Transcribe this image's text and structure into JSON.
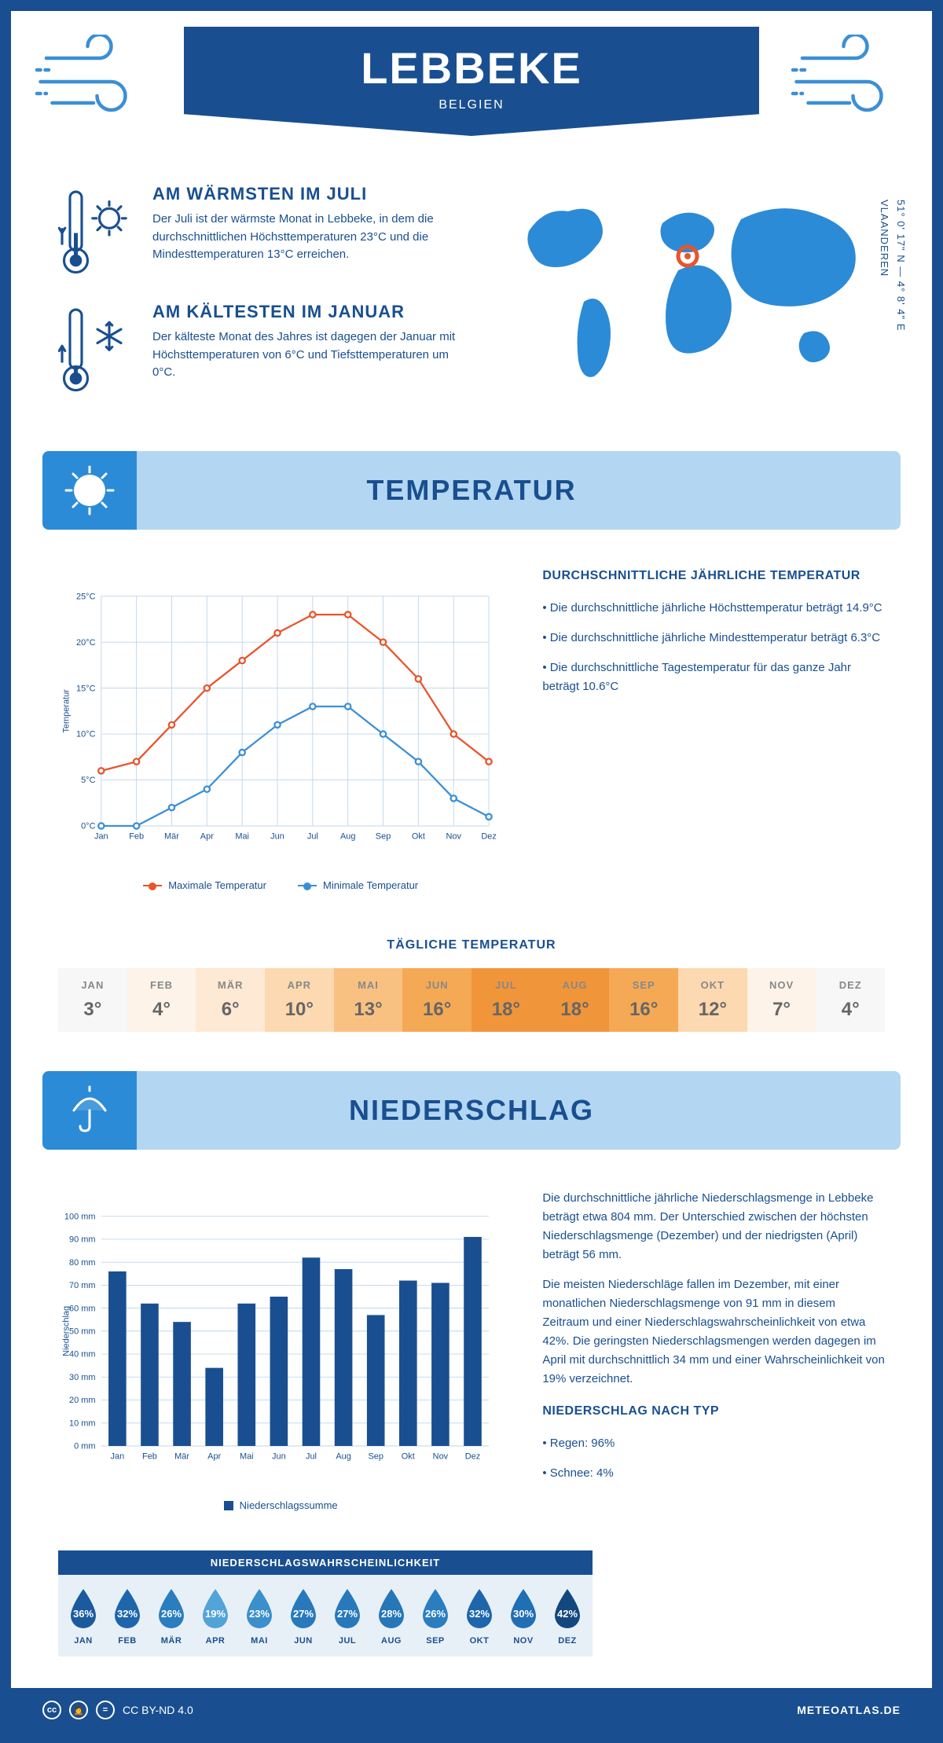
{
  "header": {
    "title": "LEBBEKE",
    "subtitle": "BELGIEN"
  },
  "coords": {
    "lat": "51° 0' 17\" N — 4° 8' 4\" E",
    "region": "VLAANDEREN"
  },
  "facts": {
    "warm": {
      "title": "AM WÄRMSTEN IM JULI",
      "text": "Der Juli ist der wärmste Monat in Lebbeke, in dem die durchschnittlichen Höchsttemperaturen 23°C und die Mindesttemperaturen 13°C erreichen."
    },
    "cold": {
      "title": "AM KÄLTESTEN IM JANUAR",
      "text": "Der kälteste Monat des Jahres ist dagegen der Januar mit Höchsttemperaturen von 6°C und Tiefsttemperaturen um 0°C."
    }
  },
  "sections": {
    "temperature": "TEMPERATUR",
    "precipitation": "NIEDERSCHLAG"
  },
  "temp_chart": {
    "type": "line",
    "months": [
      "Jan",
      "Feb",
      "Mär",
      "Apr",
      "Mai",
      "Jun",
      "Jul",
      "Aug",
      "Sep",
      "Okt",
      "Nov",
      "Dez"
    ],
    "max": [
      6,
      7,
      11,
      15,
      18,
      21,
      23,
      23,
      20,
      16,
      10,
      7
    ],
    "min": [
      0,
      0,
      2,
      4,
      8,
      11,
      13,
      13,
      10,
      7,
      3,
      1
    ],
    "ylim": [
      0,
      25
    ],
    "ytick_step": 5,
    "ylabel": "Temperatur",
    "max_color": "#e8552b",
    "min_color": "#3b8fd6",
    "grid_color": "#c0d5ea",
    "legend_max": "Maximale Temperatur",
    "legend_min": "Minimale Temperatur"
  },
  "temp_text": {
    "heading": "DURCHSCHNITTLICHE JÄHRLICHE TEMPERATUR",
    "p1": "• Die durchschnittliche jährliche Höchsttemperatur beträgt 14.9°C",
    "p2": "• Die durchschnittliche jährliche Mindesttemperatur beträgt 6.3°C",
    "p3": "• Die durchschnittliche Tagestemperatur für das ganze Jahr beträgt 10.6°C"
  },
  "daily": {
    "title": "TÄGLICHE TEMPERATUR",
    "months": [
      "JAN",
      "FEB",
      "MÄR",
      "APR",
      "MAI",
      "JUN",
      "JUL",
      "AUG",
      "SEP",
      "OKT",
      "NOV",
      "DEZ"
    ],
    "values": [
      "3°",
      "4°",
      "6°",
      "10°",
      "13°",
      "16°",
      "18°",
      "18°",
      "16°",
      "12°",
      "7°",
      "4°"
    ],
    "colors": [
      "#f7f7f7",
      "#fdf3e8",
      "#fde9d4",
      "#fcd9b0",
      "#f9c181",
      "#f5a955",
      "#f1953a",
      "#f1953a",
      "#f5a955",
      "#fcd9b0",
      "#fdf3e8",
      "#f7f7f7"
    ]
  },
  "precip_chart": {
    "type": "bar",
    "months": [
      "Jan",
      "Feb",
      "Mär",
      "Apr",
      "Mai",
      "Jun",
      "Jul",
      "Aug",
      "Sep",
      "Okt",
      "Nov",
      "Dez"
    ],
    "values": [
      76,
      62,
      54,
      34,
      62,
      65,
      82,
      77,
      57,
      72,
      71,
      91
    ],
    "ylim": [
      0,
      100
    ],
    "ytick_step": 10,
    "ylabel": "Niederschlag",
    "bar_color": "#194f90",
    "grid_color": "#c0d5ea",
    "legend": "Niederschlagssumme"
  },
  "precip_text": {
    "p1": "Die durchschnittliche jährliche Niederschlagsmenge in Lebbeke beträgt etwa 804 mm. Der Unterschied zwischen der höchsten Niederschlagsmenge (Dezember) und der niedrigsten (April) beträgt 56 mm.",
    "p2": "Die meisten Niederschläge fallen im Dezember, mit einer monatlichen Niederschlagsmenge von 91 mm in diesem Zeitraum und einer Niederschlagswahrscheinlichkeit von etwa 42%. Die geringsten Niederschlagsmengen werden dagegen im April mit durchschnittlich 34 mm und einer Wahrscheinlichkeit von 19% verzeichnet.",
    "heading": "NIEDERSCHLAG NACH TYP",
    "p3": "• Regen: 96%",
    "p4": "• Schnee: 4%"
  },
  "prob": {
    "title": "NIEDERSCHLAGSWAHRSCHEINLICHKEIT",
    "months": [
      "JAN",
      "FEB",
      "MÄR",
      "APR",
      "MAI",
      "JUN",
      "JUL",
      "AUG",
      "SEP",
      "OKT",
      "NOV",
      "DEZ"
    ],
    "values": [
      "36%",
      "32%",
      "26%",
      "19%",
      "23%",
      "27%",
      "27%",
      "28%",
      "26%",
      "32%",
      "30%",
      "42%"
    ],
    "colors": [
      "#1b5a9e",
      "#1d66ac",
      "#2a7ec0",
      "#52a3d8",
      "#3a8fcc",
      "#2879bb",
      "#2879bb",
      "#2676b8",
      "#2a7ec0",
      "#1d66ac",
      "#206eb3",
      "#13487e"
    ]
  },
  "footer": {
    "license": "CC BY-ND 4.0",
    "site": "METEOATLAS.DE"
  }
}
